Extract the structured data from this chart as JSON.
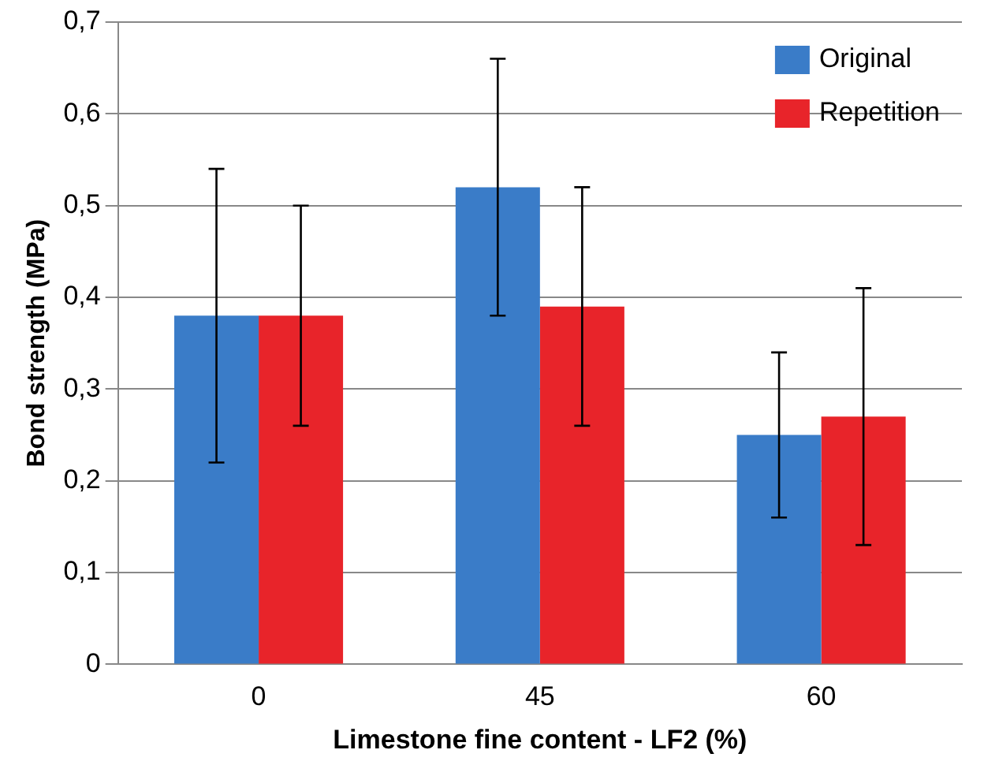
{
  "chart_data": {
    "type": "bar",
    "xlabel": "Limestone fine content - LF2 (%)",
    "ylabel": "Bond strength (MPa)",
    "categories": [
      "0",
      "45",
      "60"
    ],
    "series": [
      {
        "name": "Original",
        "color": "#3a7cc8",
        "values": [
          0.38,
          0.52,
          0.25
        ],
        "errors": [
          [
            0.22,
            0.54
          ],
          [
            0.38,
            0.66
          ],
          [
            0.16,
            0.34
          ]
        ]
      },
      {
        "name": "Repetition",
        "color": "#e8242a",
        "values": [
          0.38,
          0.39,
          0.27
        ],
        "errors": [
          [
            0.26,
            0.5
          ],
          [
            0.26,
            0.52
          ],
          [
            0.13,
            0.41
          ]
        ]
      }
    ],
    "ylim": [
      0,
      0.7
    ],
    "yticks": [
      {
        "value": 0,
        "label": "0"
      },
      {
        "value": 0.1,
        "label": "0,1"
      },
      {
        "value": 0.2,
        "label": "0,2"
      },
      {
        "value": 0.3,
        "label": "0,3"
      },
      {
        "value": 0.4,
        "label": "0,4"
      },
      {
        "value": 0.5,
        "label": "0,5"
      },
      {
        "value": 0.6,
        "label": "0,6"
      },
      {
        "value": 0.7,
        "label": "0,7"
      }
    ],
    "grid": "y",
    "legend": "top right"
  }
}
